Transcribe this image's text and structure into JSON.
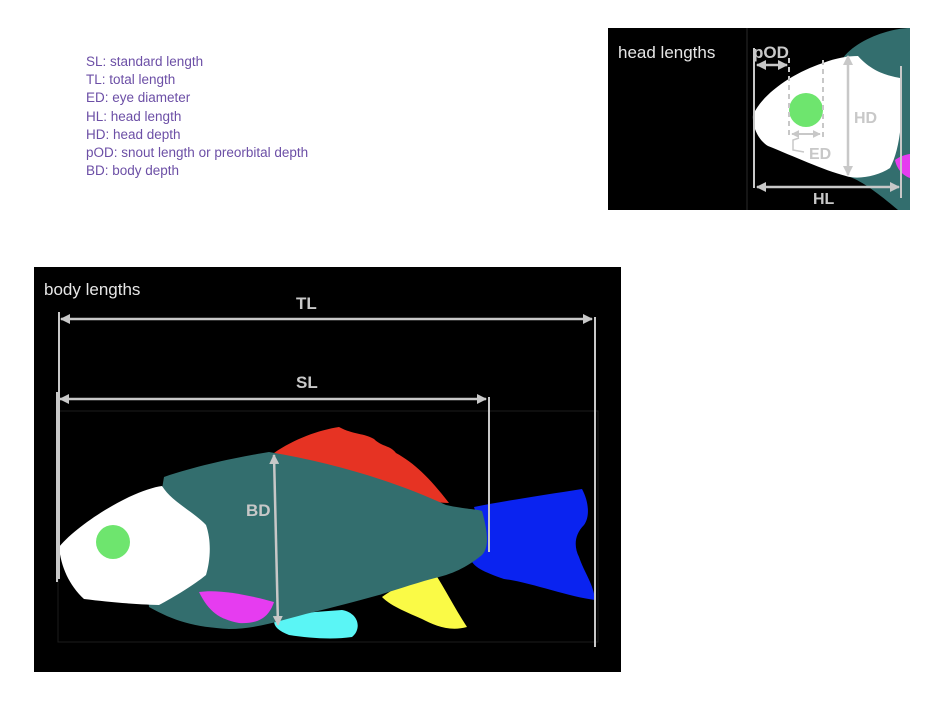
{
  "legend": [
    "SL: standard length",
    "TL: total length",
    "ED: eye diameter",
    "HL: head length",
    "HD: head depth",
    "pOD: snout length or preorbital depth",
    "BD: body depth"
  ],
  "head_panel": {
    "title": "head lengths",
    "labels": {
      "pOD": "pOD",
      "HD": "HD",
      "ED": "ED",
      "HL": "HL"
    }
  },
  "body_panel": {
    "title": "body lengths",
    "labels": {
      "TL": "TL",
      "SL": "SL",
      "BD": "BD"
    }
  },
  "colors": {
    "head": "#ffffff",
    "eye": "#6ee56e",
    "body": "#336e6e",
    "dorsal_fin": "#e63323",
    "caudal_fin": "#0a23f0",
    "pectoral_fin": "#e63cf0",
    "pelvic_fin": "#5af5f5",
    "anal_fin": "#fafa46",
    "measure_line": "#c8c8c8",
    "legend_text": "#6c4fa6"
  }
}
